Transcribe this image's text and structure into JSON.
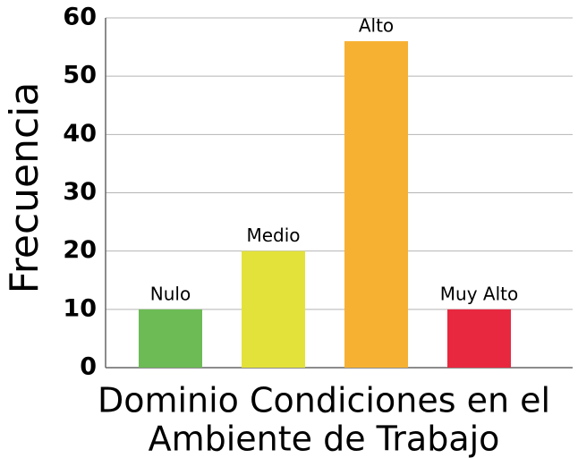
{
  "chart_data": {
    "type": "bar",
    "ylabel": "Frecuencia",
    "xlabel": [
      "Dominio Condiciones en el",
      "Ambiente de Trabajo"
    ],
    "categories": [
      "Nulo",
      "Medio",
      "Alto",
      "Muy Alto"
    ],
    "values": [
      10,
      20,
      56,
      10
    ],
    "colors": [
      "#6cbb55",
      "#e3e23a",
      "#f7b132",
      "#e8283f"
    ],
    "ylim": [
      0,
      60
    ],
    "yticks": [
      0,
      10,
      20,
      30,
      40,
      50,
      60
    ],
    "grid": true
  }
}
